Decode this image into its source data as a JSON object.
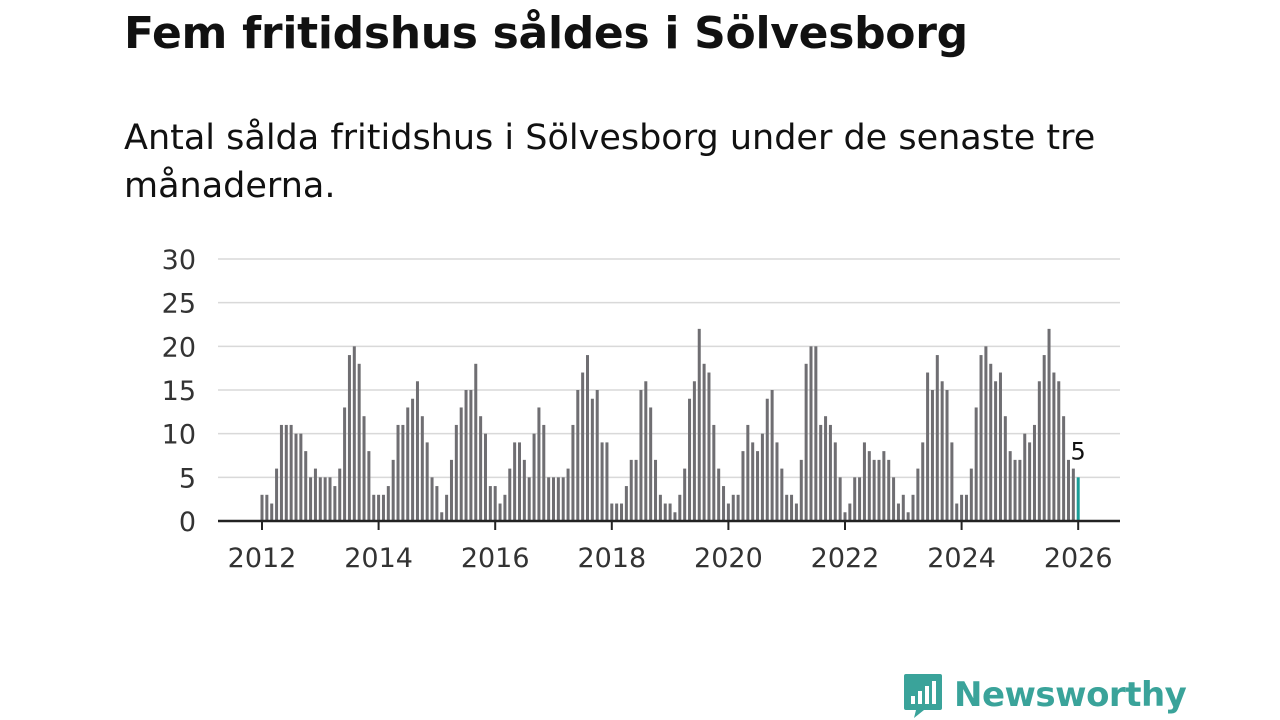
{
  "title": "Fem fritidshus såldes i Sölvesborg",
  "subtitle": "Antal sålda fritidshus i Sölvesborg under de senaste tre månaderna.",
  "brand": {
    "name": "Newsworthy",
    "color": "#3aa39a"
  },
  "colors": {
    "bar": "#6f6e72",
    "highlight": "#1a9e98",
    "grid": "#d9d9d9",
    "axis": "#222222"
  },
  "chart_data": {
    "type": "bar",
    "title": "",
    "xlabel": "",
    "ylabel": "",
    "ylim": [
      0,
      30
    ],
    "y_ticks": [
      0,
      5,
      10,
      15,
      20,
      25,
      30
    ],
    "x_ticks": [
      "2012",
      "2014",
      "2016",
      "2018",
      "2020",
      "2022",
      "2024",
      "2026"
    ],
    "x_start": "2012-01",
    "x_end": "2026-01",
    "grid": true,
    "highlight": {
      "x": "2026-01",
      "value": 5,
      "label": "5"
    },
    "values": [
      3,
      3,
      2,
      6,
      11,
      11,
      11,
      10,
      10,
      8,
      5,
      6,
      5,
      5,
      5,
      4,
      6,
      13,
      19,
      20,
      18,
      12,
      8,
      3,
      3,
      3,
      4,
      7,
      11,
      11,
      13,
      14,
      16,
      12,
      9,
      5,
      4,
      1,
      3,
      7,
      11,
      13,
      15,
      15,
      18,
      12,
      10,
      4,
      4,
      2,
      3,
      6,
      9,
      9,
      7,
      5,
      10,
      13,
      11,
      5,
      5,
      5,
      5,
      6,
      11,
      15,
      17,
      19,
      14,
      15,
      9,
      9,
      2,
      2,
      2,
      4,
      7,
      7,
      15,
      16,
      13,
      7,
      3,
      2,
      2,
      1,
      3,
      6,
      14,
      16,
      22,
      18,
      17,
      11,
      6,
      4,
      2,
      3,
      3,
      8,
      11,
      9,
      8,
      10,
      14,
      15,
      9,
      6,
      3,
      3,
      2,
      7,
      18,
      20,
      20,
      11,
      12,
      11,
      9,
      5,
      1,
      2,
      5,
      5,
      9,
      8,
      7,
      7,
      8,
      7,
      5,
      2,
      3,
      1,
      3,
      6,
      9,
      17,
      15,
      19,
      16,
      15,
      9,
      2,
      3,
      3,
      6,
      13,
      19,
      20,
      18,
      16,
      17,
      12,
      8,
      7,
      7,
      10,
      9,
      11,
      16,
      19,
      22,
      17,
      16,
      12,
      7,
      6,
      5
    ]
  }
}
